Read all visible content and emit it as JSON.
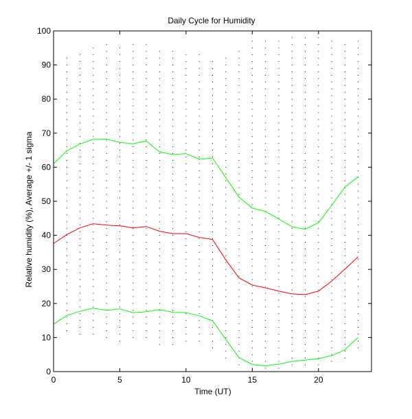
{
  "chart_data": {
    "type": "line",
    "title": "Daily Cycle for Humidity",
    "xlabel": "Time (UT)",
    "ylabel": "Relative humidity (%), Average +/- 1 sigma",
    "xlim": [
      0,
      24
    ],
    "ylim": [
      0,
      100
    ],
    "xticks": [
      0,
      5,
      10,
      15,
      20
    ],
    "yticks": [
      0,
      10,
      20,
      30,
      40,
      50,
      60,
      70,
      80,
      90,
      100
    ],
    "grid": false,
    "x": [
      0,
      1,
      2,
      3,
      4,
      5,
      6,
      7,
      8,
      9,
      10,
      11,
      12,
      13,
      14,
      15,
      16,
      17,
      18,
      19,
      20,
      21,
      22,
      23
    ],
    "series": [
      {
        "name": "Average + 1 sigma",
        "color": "#00ff00",
        "values": [
          61,
          64.8,
          66.8,
          68.2,
          68.2,
          67.3,
          66.9,
          67.7,
          64.5,
          63.7,
          64,
          62.3,
          62.7,
          57,
          51.2,
          48,
          47,
          44.8,
          42.5,
          41.8,
          43.7,
          48.8,
          54.2,
          57.2
        ]
      },
      {
        "name": "Average",
        "color": "#ff0000",
        "values": [
          37.6,
          40.2,
          42.2,
          43.4,
          43,
          42.8,
          42.2,
          42.6,
          41.2,
          40.5,
          40.5,
          39.4,
          38.8,
          32.8,
          27.5,
          25.4,
          24.6,
          23.6,
          22.8,
          22.6,
          23.6,
          26.6,
          30.1,
          33.7
        ]
      },
      {
        "name": "Average - 1 sigma",
        "color": "#00ff00",
        "values": [
          13.9,
          16.5,
          17.7,
          18.6,
          18,
          18.4,
          17.3,
          17.6,
          18.2,
          17.4,
          17.3,
          16.4,
          14.9,
          9.5,
          4.1,
          2.1,
          1.7,
          2.2,
          3,
          3.4,
          3.8,
          4.7,
          6.4,
          10.1
        ]
      }
    ],
    "samples": {
      "name": "Individual hourly observations",
      "color": "#000000",
      "hours": [
        0,
        1,
        2,
        3,
        4,
        5,
        6,
        7,
        8,
        9,
        10,
        11,
        12,
        13,
        14,
        15,
        16,
        17,
        18,
        19,
        20,
        21,
        22,
        23
      ],
      "y_min": [
        13,
        12,
        11,
        11,
        10,
        9,
        10,
        10,
        8,
        8,
        9,
        9,
        7,
        4,
        2,
        1,
        1,
        1,
        2,
        2,
        2,
        3,
        4,
        7
      ],
      "y_max": [
        92,
        93,
        94,
        95,
        96,
        96,
        96,
        96,
        95,
        95,
        94,
        93,
        92,
        93,
        94,
        97,
        97,
        97,
        98,
        98,
        98,
        98,
        97,
        97
      ],
      "step": 2
    }
  }
}
